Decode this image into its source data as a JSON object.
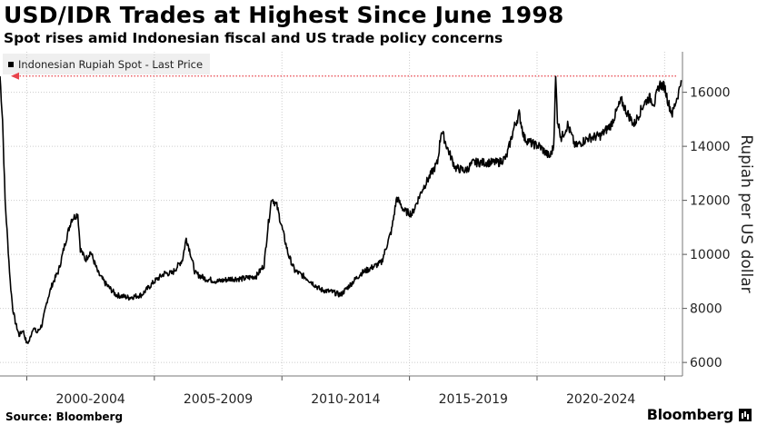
{
  "header": {
    "title": "USD/IDR Trades at Highest Since June 1998",
    "subtitle": "Spot rises amid Indonesian fiscal and US trade policy concerns"
  },
  "legend": {
    "label": "Indonesian Rupiah Spot - Last Price"
  },
  "footer": {
    "source": "Source: Bloomberg",
    "brand": "Bloomberg"
  },
  "colors": {
    "line": "#000000",
    "reference": "#e8434b",
    "grid": "#cccccc"
  },
  "chart_data": {
    "type": "line",
    "title": "USD/IDR Trades at Highest Since June 1998",
    "subtitle": "Spot rises amid Indonesian fiscal and US trade policy concerns",
    "ylabel": "Rupiah per US dollar",
    "xlabel": "",
    "ylim": [
      5500,
      17500
    ],
    "yticks": [
      6000,
      8000,
      10000,
      12000,
      14000,
      16000
    ],
    "ytick_labels": [
      "6000",
      "8000",
      "10000",
      "12000",
      "14000",
      "16000"
    ],
    "xlim": [
      1998.45,
      2025.2
    ],
    "xtick_positions": [
      1999.5,
      2004.5,
      2009.5,
      2014.5,
      2019.5,
      2024.5
    ],
    "xtick_labels": [
      "2000-2004",
      "2005-2009",
      "2010-2014",
      "2015-2019",
      "2020-2024"
    ],
    "xlabel_centers": [
      2002,
      2007,
      2012,
      2017,
      2022
    ],
    "grid": true,
    "legend_position": "top-left",
    "reference_line": {
      "value": 16600,
      "style": "dotted",
      "arrow": "left"
    },
    "series": [
      {
        "name": "Indonesian Rupiah Spot - Last Price",
        "x": [
          1998.45,
          1998.55,
          1998.65,
          1998.75,
          1998.85,
          1998.95,
          1999.05,
          1999.2,
          1999.35,
          1999.5,
          1999.6,
          1999.75,
          1999.9,
          2000.1,
          2000.3,
          2000.5,
          2000.75,
          2001.0,
          2001.25,
          2001.5,
          2001.6,
          2001.8,
          2002.0,
          2002.3,
          2002.6,
          2003.0,
          2003.5,
          2004.0,
          2004.5,
          2004.9,
          2005.2,
          2005.6,
          2005.75,
          2005.9,
          2006.1,
          2006.5,
          2007.0,
          2007.5,
          2008.0,
          2008.5,
          2008.8,
          2008.95,
          2009.1,
          2009.3,
          2009.5,
          2009.75,
          2010.0,
          2010.5,
          2011.0,
          2011.5,
          2011.8,
          2012.2,
          2012.6,
          2013.0,
          2013.4,
          2013.6,
          2013.8,
          2014.0,
          2014.3,
          2014.6,
          2015.0,
          2015.3,
          2015.6,
          2015.75,
          2016.0,
          2016.3,
          2016.7,
          2017.0,
          2017.5,
          2018.0,
          2018.3,
          2018.6,
          2018.8,
          2019.0,
          2019.3,
          2019.6,
          2020.0,
          2020.15,
          2020.23,
          2020.3,
          2020.45,
          2020.7,
          2021.0,
          2021.5,
          2022.0,
          2022.4,
          2022.8,
          2023.0,
          2023.3,
          2023.7,
          2023.9,
          2024.1,
          2024.3,
          2024.5,
          2024.65,
          2024.8,
          2024.95,
          2025.05,
          2025.15
        ],
        "y": [
          16600,
          15000,
          12000,
          10500,
          9000,
          8000,
          7500,
          7000,
          7200,
          6700,
          6800,
          7300,
          7100,
          7400,
          8300,
          8900,
          9400,
          10400,
          11300,
          11500,
          10200,
          9800,
          10100,
          9300,
          8900,
          8500,
          8400,
          8500,
          9000,
          9300,
          9300,
          9800,
          10600,
          10100,
          9300,
          9100,
          9000,
          9100,
          9100,
          9200,
          9600,
          11000,
          12100,
          11800,
          11000,
          10000,
          9400,
          9100,
          8700,
          8600,
          8500,
          8900,
          9300,
          9500,
          9700,
          10300,
          10900,
          12100,
          11600,
          11500,
          12400,
          12900,
          13400,
          14600,
          13900,
          13200,
          13100,
          13400,
          13400,
          13400,
          13600,
          14700,
          15200,
          14300,
          14100,
          14000,
          13600,
          14000,
          16550,
          15000,
          14300,
          14800,
          14000,
          14300,
          14400,
          14800,
          15700,
          15300,
          14800,
          15600,
          15800,
          15600,
          16300,
          16200,
          15600,
          15200,
          15700,
          16000,
          16450
        ]
      }
    ]
  }
}
